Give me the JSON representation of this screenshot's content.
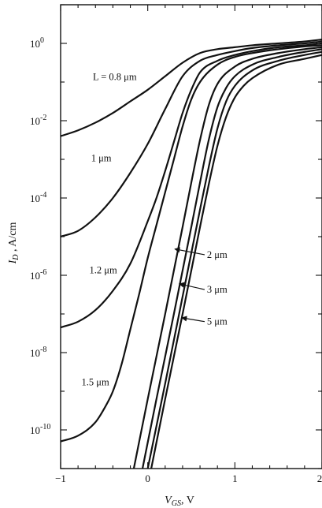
{
  "chart_data": {
    "type": "line",
    "title": "",
    "xlabel": "V_GS, V",
    "ylabel": "I_D , A/cm",
    "xlim": [
      -1,
      2
    ],
    "ylim_exponent": [
      -11,
      1
    ],
    "y_scale": "log",
    "grid": false,
    "legend": "none (curves labeled inline)",
    "x_ticks": [
      {
        "value": -1,
        "label": "−1"
      },
      {
        "value": 0,
        "label": "0"
      },
      {
        "value": 1,
        "label": "1"
      },
      {
        "value": 2,
        "label": "2"
      }
    ],
    "y_ticks": [
      {
        "exp": 0,
        "base": "10",
        "sup": "0"
      },
      {
        "exp": -2,
        "base": "10",
        "sup": "-2"
      },
      {
        "exp": -4,
        "base": "10",
        "sup": "-4"
      },
      {
        "exp": -6,
        "base": "10",
        "sup": "-6"
      },
      {
        "exp": -8,
        "base": "10",
        "sup": "-8"
      },
      {
        "exp": -10,
        "base": "10",
        "sup": "-10"
      }
    ],
    "series": [
      {
        "name": "L = 0.8 μm",
        "x": [
          -1.0,
          -0.8,
          -0.6,
          -0.4,
          -0.2,
          0.0,
          0.2,
          0.4,
          0.6,
          0.8,
          1.0,
          1.2,
          1.5,
          1.8,
          2.0
        ],
        "log10_y": [
          -2.4,
          -2.25,
          -2.05,
          -1.8,
          -1.5,
          -1.2,
          -0.85,
          -0.5,
          -0.25,
          -0.15,
          -0.1,
          -0.05,
          0.0,
          0.05,
          0.1
        ]
      },
      {
        "name": "1 μm",
        "x": [
          -1.0,
          -0.8,
          -0.6,
          -0.4,
          -0.2,
          0.0,
          0.2,
          0.4,
          0.6,
          0.8,
          1.0,
          1.2,
          1.5,
          1.8,
          2.0
        ],
        "log10_y": [
          -5.0,
          -4.85,
          -4.5,
          -4.0,
          -3.35,
          -2.6,
          -1.7,
          -0.85,
          -0.45,
          -0.3,
          -0.2,
          -0.12,
          -0.05,
          0.0,
          0.05
        ]
      },
      {
        "name": "1.2 μm",
        "x": [
          -1.0,
          -0.8,
          -0.6,
          -0.4,
          -0.2,
          0.0,
          0.1,
          0.2,
          0.3,
          0.4,
          0.5,
          0.6,
          0.8,
          1.0,
          1.2,
          1.5,
          1.8,
          2.0
        ],
        "log10_y": [
          -7.35,
          -7.2,
          -6.9,
          -6.4,
          -5.7,
          -4.6,
          -4.0,
          -3.3,
          -2.55,
          -1.8,
          -1.2,
          -0.75,
          -0.45,
          -0.3,
          -0.2,
          -0.1,
          -0.05,
          0.0
        ]
      },
      {
        "name": "1.5 μm",
        "x": [
          -1.0,
          -0.8,
          -0.6,
          -0.5,
          -0.4,
          -0.3,
          -0.2,
          -0.1,
          0.0,
          0.1,
          0.2,
          0.3,
          0.4,
          0.5,
          0.6,
          0.8,
          1.0,
          1.2,
          1.5,
          1.8,
          2.0
        ],
        "log10_y": [
          -10.3,
          -10.15,
          -9.8,
          -9.45,
          -9.0,
          -8.3,
          -7.4,
          -6.5,
          -5.55,
          -4.7,
          -3.85,
          -3.0,
          -2.15,
          -1.45,
          -1.0,
          -0.55,
          -0.35,
          -0.25,
          -0.15,
          -0.08,
          -0.05
        ]
      },
      {
        "name": "2 μm",
        "x": [
          -0.16,
          0.0,
          0.2,
          0.4,
          0.5,
          0.6,
          0.7,
          0.8,
          1.0,
          1.2,
          1.5,
          1.8,
          2.0
        ],
        "log10_y": [
          -11.0,
          -9.2,
          -7.0,
          -4.75,
          -3.6,
          -2.5,
          -1.6,
          -1.05,
          -0.6,
          -0.4,
          -0.25,
          -0.15,
          -0.1
        ]
      },
      {
        "name": "3 μm",
        "x": [
          -0.06,
          0.1,
          0.3,
          0.5,
          0.6,
          0.7,
          0.8,
          0.9,
          1.0,
          1.2,
          1.5,
          1.8,
          2.0
        ],
        "log10_y": [
          -11.0,
          -9.2,
          -7.0,
          -4.75,
          -3.6,
          -2.5,
          -1.65,
          -1.15,
          -0.85,
          -0.55,
          -0.35,
          -0.22,
          -0.15
        ]
      },
      {
        "name": "",
        "x": [
          0.0,
          0.2,
          0.4,
          0.6,
          0.7,
          0.8,
          0.9,
          1.0,
          1.2,
          1.5,
          1.8,
          2.0
        ],
        "log10_y": [
          -11.0,
          -8.8,
          -6.55,
          -4.3,
          -3.2,
          -2.2,
          -1.5,
          -1.1,
          -0.7,
          -0.45,
          -0.3,
          -0.22
        ]
      },
      {
        "name": "5 μm",
        "x": [
          0.04,
          0.2,
          0.4,
          0.6,
          0.7,
          0.8,
          0.9,
          1.0,
          1.1,
          1.2,
          1.5,
          1.8,
          2.0
        ],
        "log10_y": [
          -11.0,
          -9.2,
          -7.0,
          -4.75,
          -3.65,
          -2.65,
          -1.9,
          -1.4,
          -1.1,
          -0.9,
          -0.55,
          -0.4,
          -0.3
        ]
      }
    ],
    "curve_labels": [
      {
        "text": "L = 0.8 μm",
        "x": -0.63,
        "log10_y": -0.95,
        "arrow": false
      },
      {
        "text": "1 μm",
        "x": -0.65,
        "log10_y": -3.05,
        "arrow": false
      },
      {
        "text": "1.2 μm",
        "x": -0.67,
        "log10_y": -5.95,
        "arrow": false
      },
      {
        "text": "1.5 μm",
        "x": -0.76,
        "log10_y": -8.85,
        "arrow": false
      },
      {
        "text": "2 μm",
        "x": 0.68,
        "log10_y": -5.55,
        "arrow": true,
        "arrow_to_x": 0.31,
        "arrow_to_log10_y": -5.32
      },
      {
        "text": "3 μm",
        "x": 0.68,
        "log10_y": -6.45,
        "arrow": true,
        "arrow_to_x": 0.36,
        "arrow_to_log10_y": -6.22
      },
      {
        "text": "5 μm",
        "x": 0.68,
        "log10_y": -7.28,
        "arrow": true,
        "arrow_to_x": 0.39,
        "arrow_to_log10_y": -7.1
      }
    ]
  }
}
